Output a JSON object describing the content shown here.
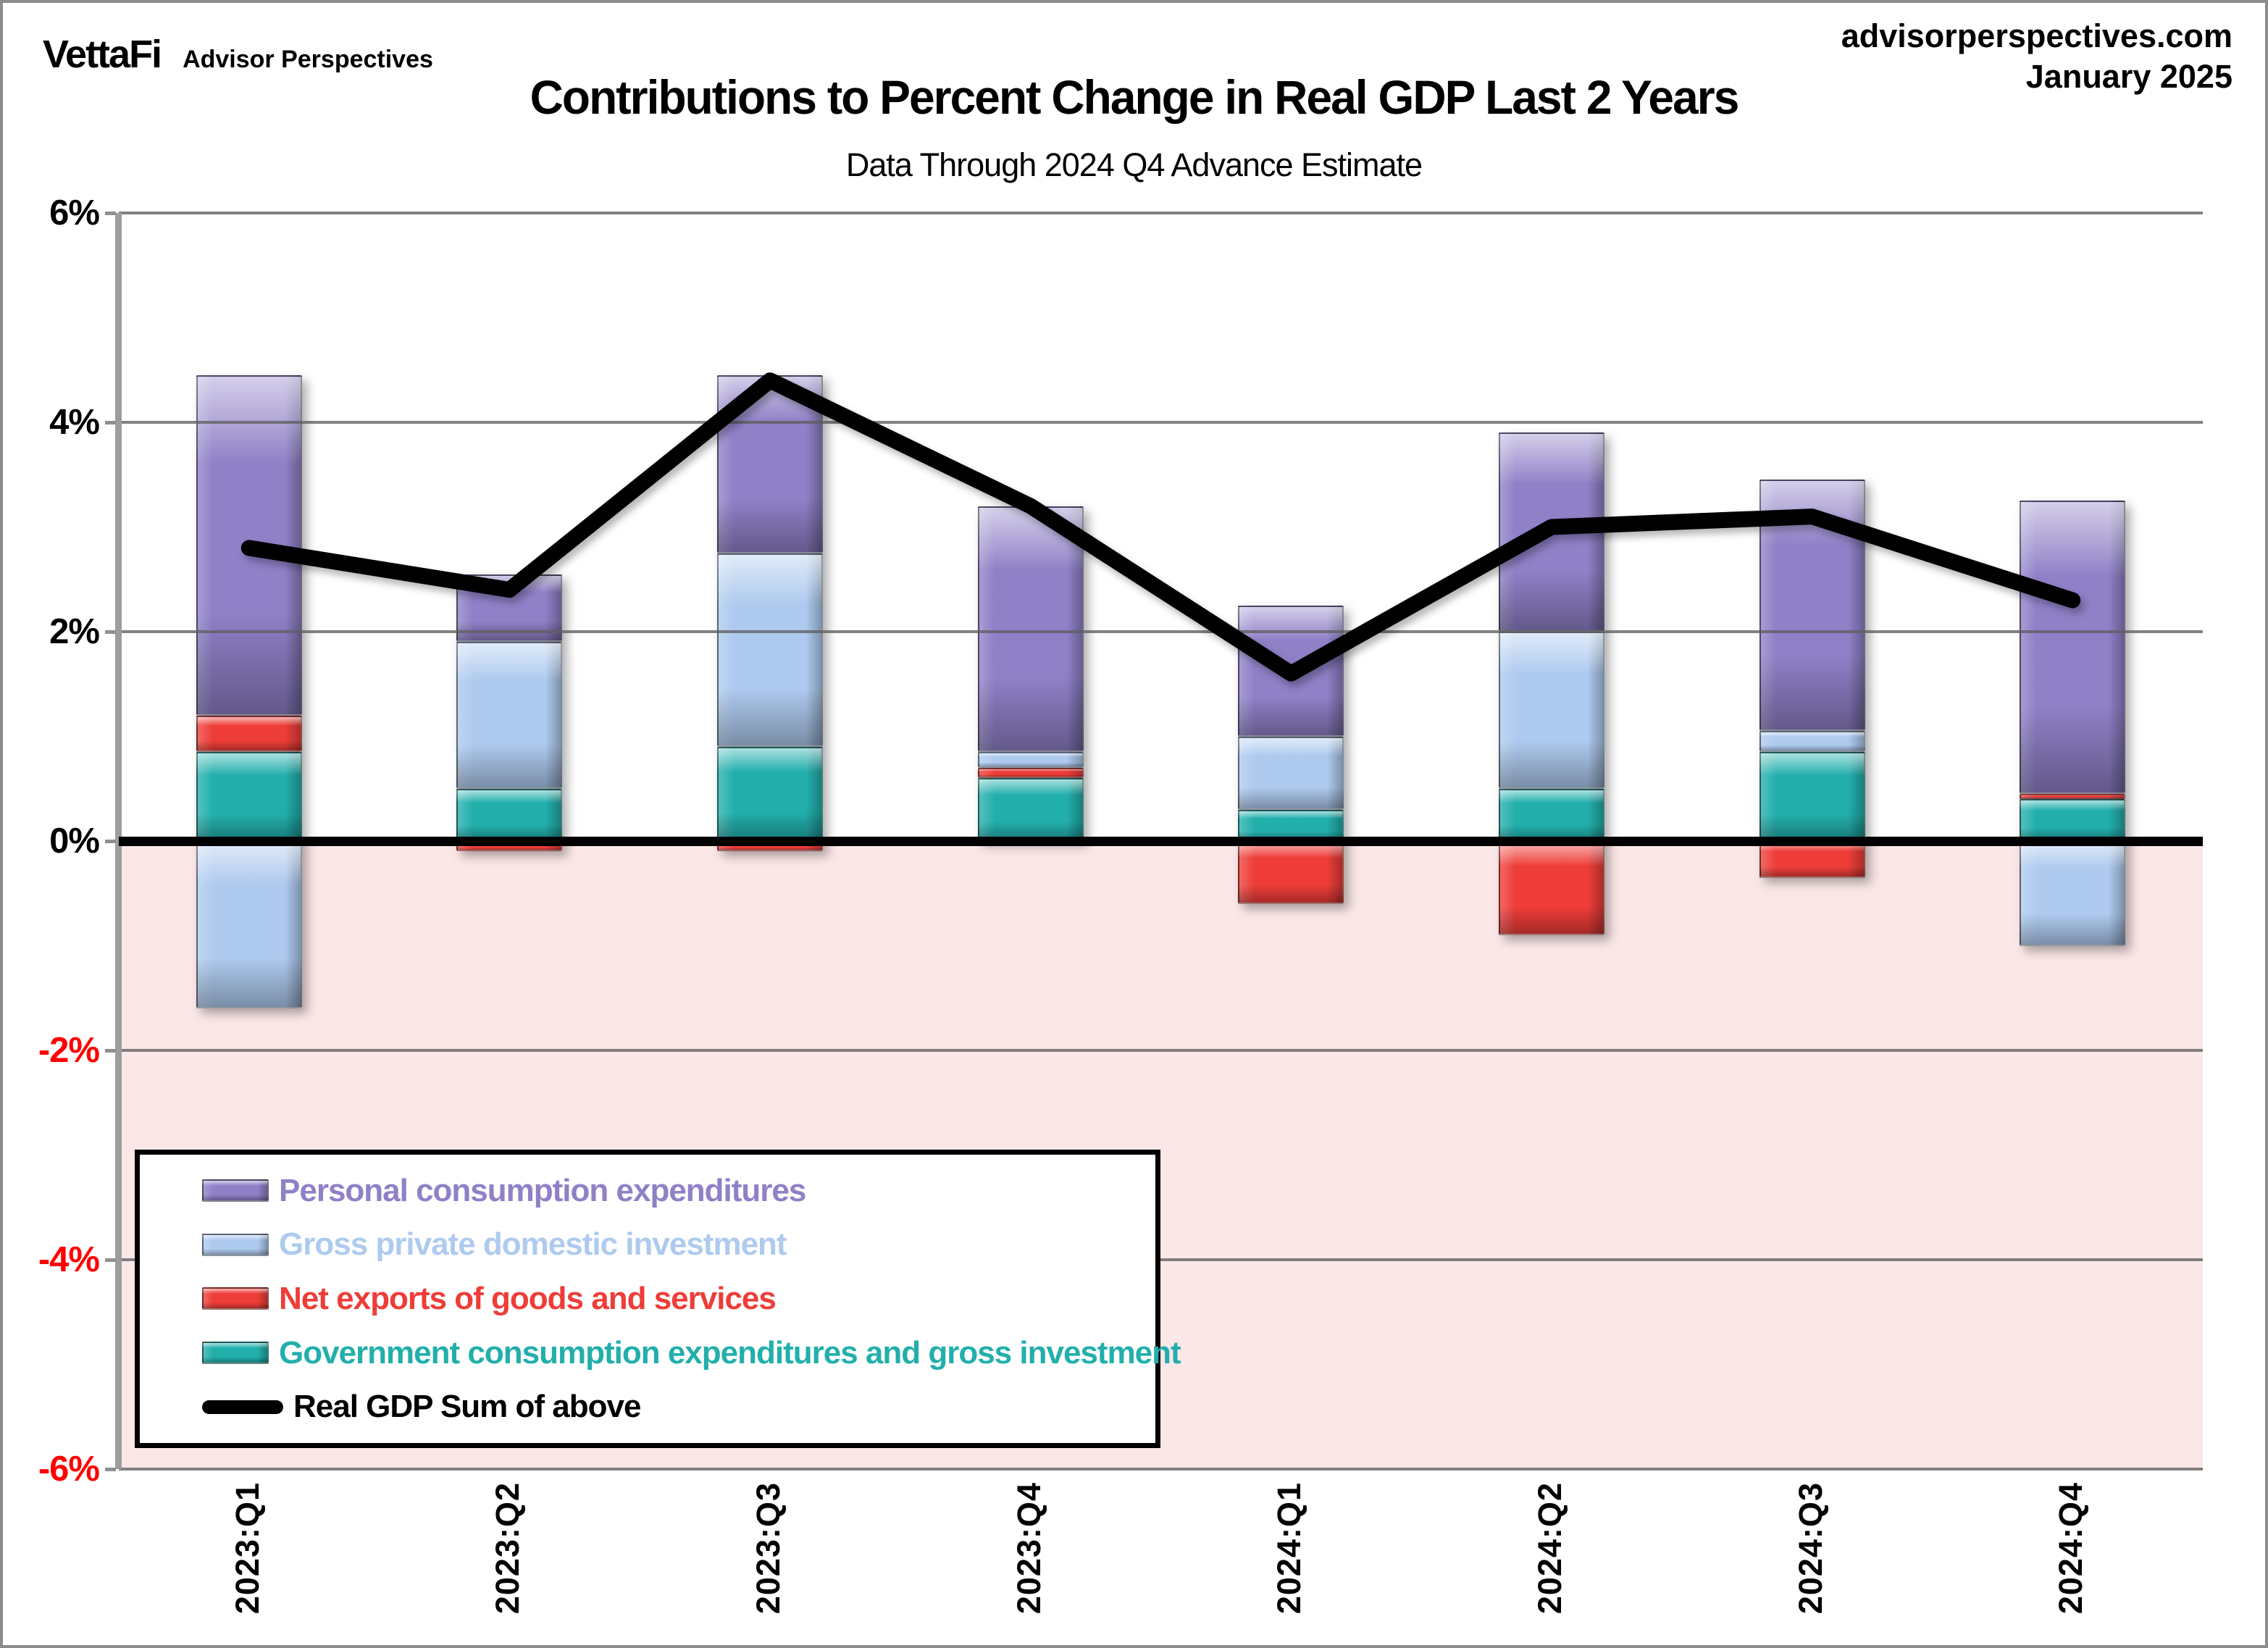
{
  "header": {
    "brand": "VettaFi",
    "brand_sub": "Advisor Perspectives",
    "source_site": "advisorperspectives.com",
    "source_date": "January 2025"
  },
  "title": "Contributions to Percent Change in Real GDP Last 2 Years",
  "subtitle": "Data Through 2024 Q4 Advance Estimate",
  "chart_data": {
    "type": "bar",
    "subtype": "stacked-bar-with-line",
    "categories": [
      "2023:Q1",
      "2023:Q2",
      "2023:Q3",
      "2023:Q4",
      "2024:Q1",
      "2024:Q2",
      "2024:Q3",
      "2024:Q4"
    ],
    "series": [
      {
        "name": "Personal consumption expenditures",
        "color": "#8F80C7",
        "values": [
          3.25,
          0.65,
          1.7,
          2.35,
          1.25,
          1.9,
          2.4,
          2.8
        ]
      },
      {
        "name": "Gross private domestic investment",
        "color": "#AECAEF",
        "values": [
          -1.6,
          1.4,
          1.85,
          0.15,
          0.7,
          1.5,
          0.2,
          -1.0
        ]
      },
      {
        "name": "Net exports of goods and services",
        "color": "#EE3D38",
        "values": [
          0.35,
          -0.1,
          -0.1,
          0.1,
          -0.6,
          -0.9,
          -0.35,
          0.05
        ]
      },
      {
        "name": "Government consumption expenditures and gross investment",
        "color": "#22AFAC",
        "values": [
          0.85,
          0.5,
          0.9,
          0.6,
          0.3,
          0.5,
          0.85,
          0.4
        ]
      }
    ],
    "stack_order_bottom_to_top": [
      3,
      2,
      1,
      0
    ],
    "line_series": {
      "name": "Real GDP Sum of above",
      "color": "#000000",
      "values": [
        2.8,
        2.4,
        4.4,
        3.2,
        1.6,
        3.0,
        3.1,
        2.3
      ]
    },
    "ylim": [
      -6,
      6
    ],
    "y_tick_interval": 2,
    "y_tick_labels": [
      "6%",
      "4%",
      "2%",
      "0%",
      "-2%",
      "-4%",
      "-6%"
    ],
    "positive_tick_color": "#000000",
    "negative_tick_color": "#FF0000",
    "negative_region_color": "#FBE7E7",
    "grid": true,
    "legend_position": "inside-bottom-left"
  }
}
